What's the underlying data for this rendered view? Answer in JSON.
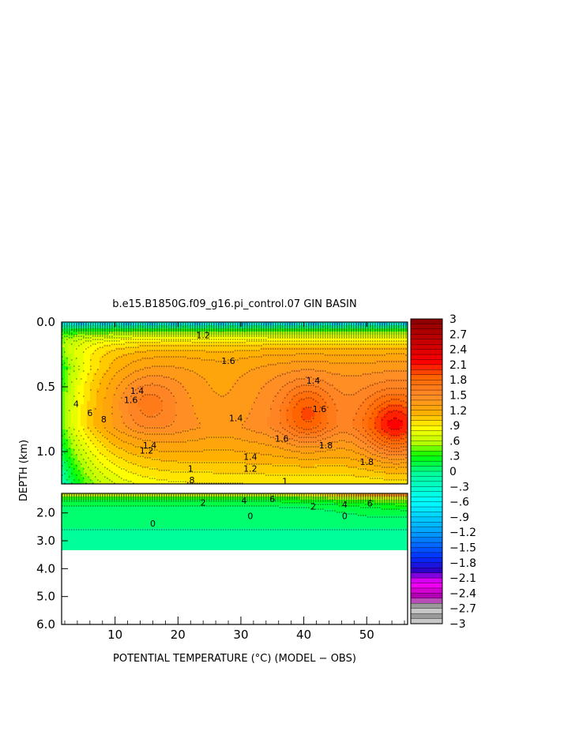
{
  "chart_data": {
    "type": "heatmap",
    "title": "b.e15.B1850G.f09_g16.pi_control.07 GIN BASIN",
    "xlabel": "POTENTIAL TEMPERATURE (°C) (MODEL − OBS)",
    "ylabel": "DEPTH (km)",
    "x_ticks": [
      "10",
      "20",
      "30",
      "40",
      "50"
    ],
    "x_tick_values": [
      10,
      20,
      30,
      40,
      50
    ],
    "xlim": [
      1.5,
      56.5
    ],
    "upper_panel": {
      "ylim": [
        0.0,
        1.25
      ],
      "y_ticks": [
        "0.0",
        "0.5",
        "1.0"
      ],
      "y_tick_values": [
        0.0,
        0.5,
        1.0
      ]
    },
    "lower_panel": {
      "ylim": [
        1.3,
        6.0
      ],
      "y_ticks": [
        "2.0",
        "3.0",
        "4.0",
        "5.0",
        "6.0"
      ],
      "y_tick_values": [
        2.0,
        3.0,
        4.0,
        5.0,
        6.0
      ],
      "data_bottom_depth": 3.35
    },
    "colorbar": {
      "min": -3,
      "max": 3,
      "step": 0.1,
      "labels": [
        "3",
        "2.7",
        "2.4",
        "2.1",
        "1.8",
        "1.5",
        "1.2",
        ".9",
        ".6",
        ".3",
        "0",
        "−.3",
        "−.6",
        "−.9",
        "−1.2",
        "−1.5",
        "−1.8",
        "−2.1",
        "−2.4",
        "−2.7",
        "−3"
      ],
      "colors": [
        "#bfbfbf",
        "#b400b4",
        "#ff00ff",
        "#2d00c8",
        "#0030ff",
        "#00a0ff",
        "#00ffff",
        "#00ff9a",
        "#00ff00",
        "#b4ff00",
        "#ffff00",
        "#ffb000",
        "#ff8a2a",
        "#ff6400",
        "#ff0000",
        "#cc0000",
        "#8b0000"
      ],
      "color_stops": [
        -2.7,
        -2.45,
        -2.2,
        -1.95,
        -1.7,
        -1.2,
        -0.6,
        -0.05,
        0.3,
        0.55,
        0.85,
        1.15,
        1.5,
        1.85,
        2.15,
        2.5,
        3.0
      ]
    },
    "contour_labels": [
      {
        "text": "1.4",
        "x": 13.5,
        "depth": 0.53
      },
      {
        "text": "1.6",
        "x": 12.5,
        "depth": 0.6
      },
      {
        "text": "4",
        "x": 3.8,
        "depth": 0.63
      },
      {
        "text": "6",
        "x": 6.0,
        "depth": 0.7
      },
      {
        "text": "8",
        "x": 8.2,
        "depth": 0.75
      },
      {
        "text": "1.4",
        "x": 15.5,
        "depth": 0.95
      },
      {
        "text": "1.2",
        "x": 15.0,
        "depth": 0.99
      },
      {
        "text": "1.4",
        "x": 29.2,
        "depth": 0.74
      },
      {
        "text": "1.6",
        "x": 36.5,
        "depth": 0.9
      },
      {
        "text": "1.8",
        "x": 43.5,
        "depth": 0.95
      },
      {
        "text": "1.8",
        "x": 50.0,
        "depth": 1.08
      },
      {
        "text": "1.6",
        "x": 42.5,
        "depth": 0.67
      },
      {
        "text": "1.4",
        "x": 31.5,
        "depth": 1.04
      },
      {
        "text": "1.2",
        "x": 31.5,
        "depth": 1.13
      },
      {
        "text": "1",
        "x": 22.0,
        "depth": 1.13
      },
      {
        "text": ".8",
        "x": 22.0,
        "depth": 1.22
      },
      {
        "text": "1",
        "x": 37.0,
        "depth": 1.23
      },
      {
        "text": "1.6",
        "x": 28.0,
        "depth": 0.3
      },
      {
        "text": "1.4",
        "x": 41.5,
        "depth": 0.45
      },
      {
        "text": "1.2",
        "x": 24.0,
        "depth": 0.1
      },
      {
        "text": "2",
        "x": 24.0,
        "depth": 1.63
      },
      {
        "text": "4",
        "x": 30.5,
        "depth": 1.55
      },
      {
        "text": "6",
        "x": 35.0,
        "depth": 1.5
      },
      {
        "text": "2",
        "x": 41.5,
        "depth": 1.77
      },
      {
        "text": "4",
        "x": 46.5,
        "depth": 1.7
      },
      {
        "text": "6",
        "x": 50.5,
        "depth": 1.65
      },
      {
        "text": "0",
        "x": 16.0,
        "depth": 2.38
      },
      {
        "text": "0",
        "x": 31.5,
        "depth": 2.1
      },
      {
        "text": "0",
        "x": 46.5,
        "depth": 2.1
      }
    ],
    "hotspots": [
      {
        "x": 15.0,
        "depth": 0.62,
        "value": 1.65
      },
      {
        "x": 40.5,
        "depth": 0.7,
        "value": 1.95
      },
      {
        "x": 54.5,
        "depth": 0.8,
        "value": 2.2
      }
    ],
    "legend_position": "right (colorbar)"
  }
}
